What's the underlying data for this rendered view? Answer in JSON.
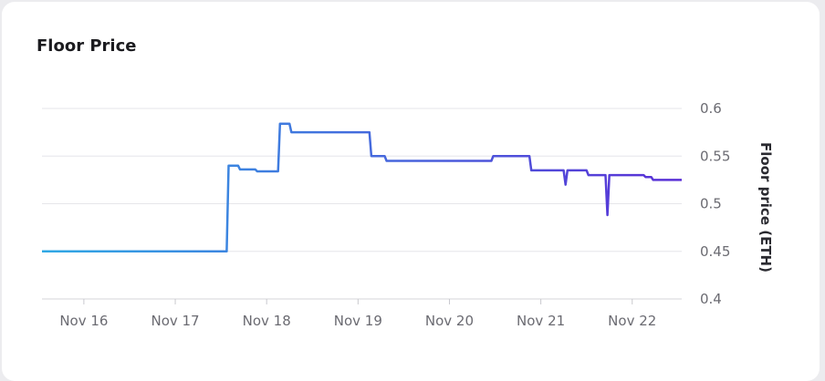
{
  "card": {
    "title": "Floor Price"
  },
  "chart_data": {
    "type": "line",
    "title": "Floor Price",
    "xlabel": "",
    "ylabel": "Floor price (ETH)",
    "ylim": [
      0.4,
      0.6
    ],
    "xlim": [
      "2022-11-15T13:00",
      "2022-11-22T13:00"
    ],
    "grid": true,
    "y_axis_position": "right",
    "x_ticks": [
      {
        "label": "Nov 16",
        "x": "2022-11-16T00:00"
      },
      {
        "label": "Nov 17",
        "x": "2022-11-17T00:00"
      },
      {
        "label": "Nov 18",
        "x": "2022-11-18T00:00"
      },
      {
        "label": "Nov 19",
        "x": "2022-11-19T00:00"
      },
      {
        "label": "Nov 20",
        "x": "2022-11-20T00:00"
      },
      {
        "label": "Nov 21",
        "x": "2022-11-21T00:00"
      },
      {
        "label": "Nov 22",
        "x": "2022-11-22T00:00"
      }
    ],
    "y_ticks": [
      {
        "label": "0.4",
        "value": 0.4
      },
      {
        "label": "0.45",
        "value": 0.45
      },
      {
        "label": "0.5",
        "value": 0.5
      },
      {
        "label": "0.55",
        "value": 0.55
      },
      {
        "label": "0.6",
        "value": 0.6
      }
    ],
    "gradient_colors": [
      "#2fa8e4",
      "#5a2fd6"
    ],
    "series": [
      {
        "points": [
          [
            "2022-11-15T13:00",
            0.45
          ],
          [
            "2022-11-17T13:30",
            0.45
          ],
          [
            "2022-11-17T14:00",
            0.54
          ],
          [
            "2022-11-17T16:30",
            0.54
          ],
          [
            "2022-11-17T17:00",
            0.536
          ],
          [
            "2022-11-17T21:00",
            0.536
          ],
          [
            "2022-11-17T21:30",
            0.534
          ],
          [
            "2022-11-18T03:00",
            0.534
          ],
          [
            "2022-11-18T03:30",
            0.584
          ],
          [
            "2022-11-18T06:00",
            0.584
          ],
          [
            "2022-11-18T06:30",
            0.575
          ],
          [
            "2022-11-19T03:00",
            0.575
          ],
          [
            "2022-11-19T03:30",
            0.55
          ],
          [
            "2022-11-19T07:00",
            0.55
          ],
          [
            "2022-11-19T07:30",
            0.545
          ],
          [
            "2022-11-20T11:00",
            0.545
          ],
          [
            "2022-11-20T11:30",
            0.55
          ],
          [
            "2022-11-20T21:00",
            0.55
          ],
          [
            "2022-11-20T21:30",
            0.535
          ],
          [
            "2022-11-21T06:00",
            0.535
          ],
          [
            "2022-11-21T06:30",
            0.52
          ],
          [
            "2022-11-21T07:00",
            0.535
          ],
          [
            "2022-11-21T12:00",
            0.535
          ],
          [
            "2022-11-21T12:30",
            0.53
          ],
          [
            "2022-11-21T17:00",
            0.53
          ],
          [
            "2022-11-21T17:30",
            0.488
          ],
          [
            "2022-11-21T18:00",
            0.53
          ],
          [
            "2022-11-22T03:00",
            0.53
          ],
          [
            "2022-11-22T03:30",
            0.528
          ],
          [
            "2022-11-22T05:00",
            0.528
          ],
          [
            "2022-11-22T05:30",
            0.525
          ],
          [
            "2022-11-22T13:00",
            0.525
          ]
        ]
      }
    ]
  }
}
